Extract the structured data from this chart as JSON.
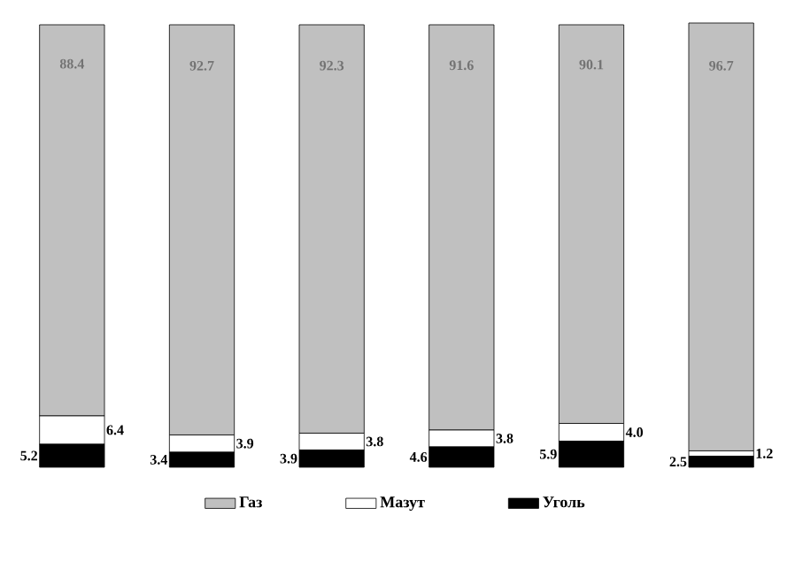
{
  "chart_data": {
    "type": "bar",
    "stacked": true,
    "categories": [
      null,
      null,
      null,
      null,
      null,
      null
    ],
    "series": [
      {
        "name": "Уголь",
        "color": "#000000",
        "values": [
          5.2,
          3.4,
          3.9,
          4.6,
          5.9,
          2.5
        ],
        "value_labels": [
          "5.2",
          "3.4",
          "3.9",
          "4.6",
          "5.9",
          "2.5"
        ]
      },
      {
        "name": "Мазут",
        "color": "#ffffff",
        "values": [
          6.4,
          3.9,
          3.8,
          3.8,
          4.0,
          1.2
        ],
        "value_labels": [
          "6.4",
          "3.9",
          "3.8",
          "3.8",
          "4.0",
          "1.2"
        ]
      },
      {
        "name": "Газ",
        "color": "#c0c0c0",
        "values": [
          88.4,
          92.7,
          92.3,
          91.6,
          90.1,
          96.7
        ],
        "value_labels": [
          "88.4",
          "92.7",
          "92.3",
          "91.6",
          "90.1",
          "96.7"
        ]
      }
    ],
    "ylim": [
      0,
      100
    ],
    "legend": "bottom"
  }
}
